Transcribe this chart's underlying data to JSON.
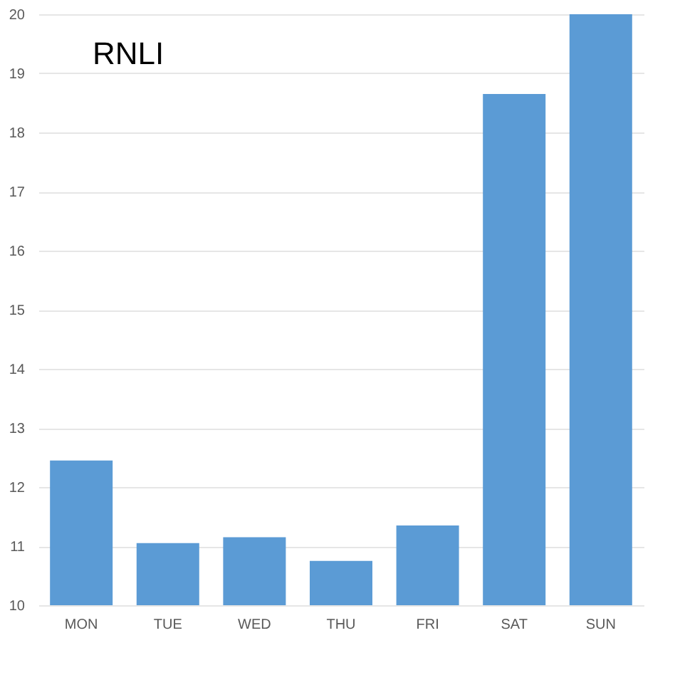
{
  "chart_data": {
    "type": "bar",
    "title": "RNLI",
    "categories": [
      "MON",
      "TUE",
      "WED",
      "THU",
      "FRI",
      "SAT",
      "SUN"
    ],
    "values": [
      12.45,
      11.05,
      11.15,
      10.75,
      11.35,
      18.65,
      20
    ],
    "color": "#5b9bd5",
    "ylim": [
      10,
      20
    ],
    "yticks": [
      10,
      11,
      12,
      13,
      14,
      15,
      16,
      17,
      18,
      19,
      20
    ],
    "grid": "y"
  }
}
